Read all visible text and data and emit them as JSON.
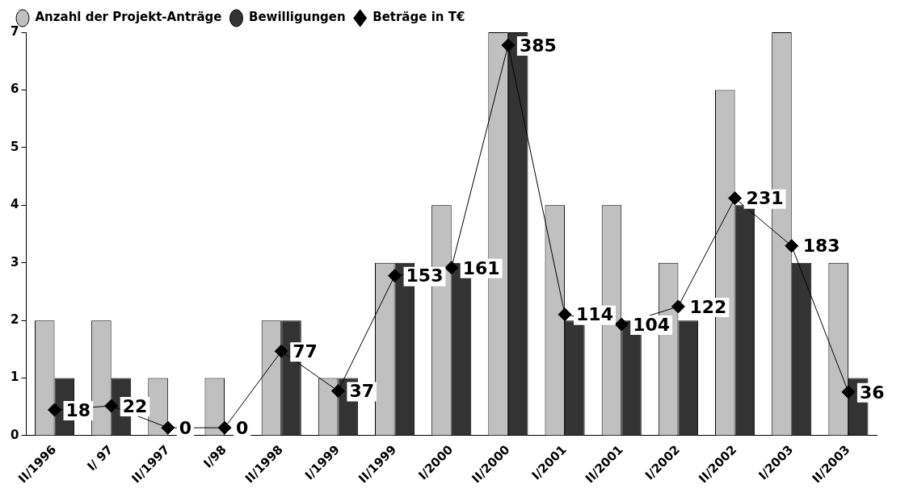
{
  "chart_data": {
    "type": "bar",
    "categories": [
      "II/1996",
      "I/ 97",
      "II/1997",
      "I/98",
      "II/1998",
      "I/1999",
      "II/1999",
      "I/2000",
      "II/2000",
      "I/2001",
      "II/2001",
      "I/2002",
      "II/2002",
      "I/2003",
      "II/2003"
    ],
    "series": [
      {
        "name": "Anzahl der Projekt-Anträge",
        "color": "#c0c0c0",
        "values": [
          2,
          2,
          1,
          1,
          2,
          1,
          3,
          4,
          7,
          4,
          4,
          3,
          6,
          7,
          3
        ]
      },
      {
        "name": "Bewilligungen",
        "color": "#333333",
        "values": [
          1,
          1,
          0,
          0,
          2,
          1,
          3,
          3,
          7,
          2,
          2,
          2,
          4,
          3,
          1
        ]
      },
      {
        "name": "Beträge in T€",
        "type": "line",
        "axis": "y2",
        "color": "#000000",
        "marker": "diamond",
        "values": [
          18,
          22,
          0,
          0,
          77,
          37,
          153,
          161,
          385,
          114,
          104,
          122,
          231,
          183,
          36
        ],
        "value_labels": [
          "18",
          "22",
          "0",
          "0",
          "77",
          "37",
          "153",
          "161",
          "385",
          "114",
          "104",
          "122",
          "231",
          "183",
          "36"
        ]
      }
    ],
    "ylim": [
      0,
      7
    ],
    "yticks": [
      0,
      1,
      2,
      3,
      4,
      5,
      6,
      7
    ],
    "y2lim": [
      -8,
      398
    ],
    "grid": false,
    "legend": "top left"
  }
}
